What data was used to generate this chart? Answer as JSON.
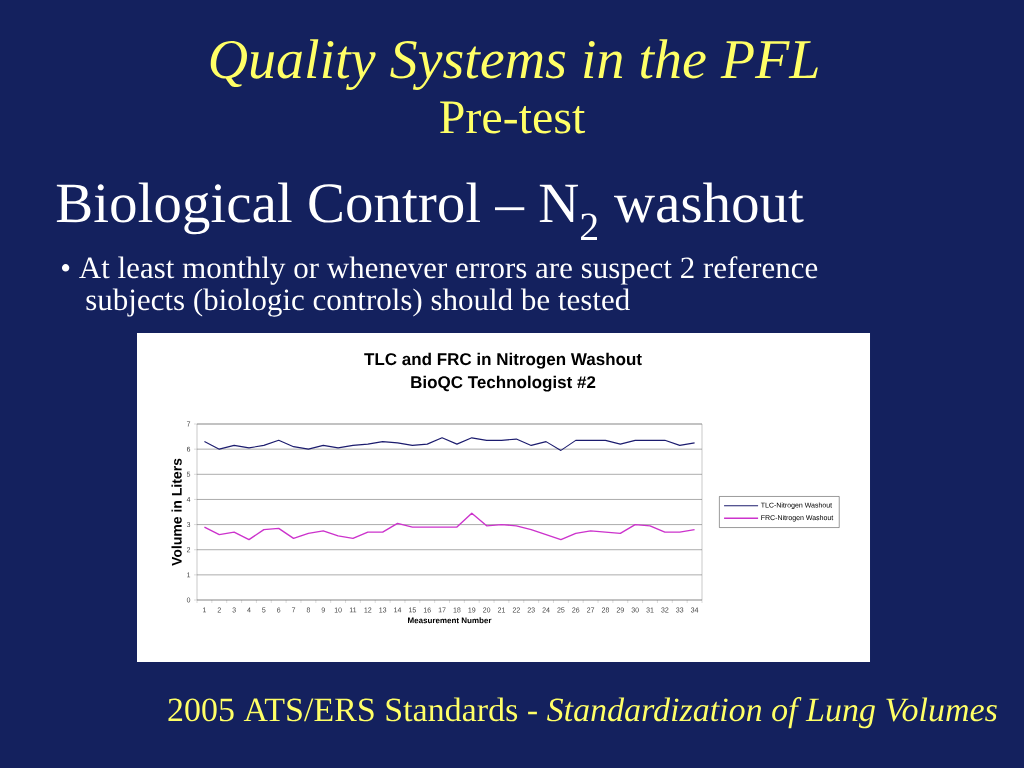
{
  "chart_data": {
    "type": "line",
    "title": "TLC and FRC in Nitrogen Washout",
    "subtitle": "BioQC Technologist #2",
    "xlabel": "Measurement Number",
    "ylabel": "Volume in Liters",
    "categories": [
      "1",
      "2",
      "3",
      "4",
      "5",
      "6",
      "7",
      "8",
      "9",
      "10",
      "11",
      "12",
      "13",
      "14",
      "15",
      "16",
      "17",
      "18",
      "19",
      "20",
      "21",
      "22",
      "23",
      "24",
      "25",
      "26",
      "27",
      "28",
      "29",
      "30",
      "31",
      "32",
      "33",
      "34"
    ],
    "series": [
      {
        "name": "TLC-Nitrogen Washout",
        "color": "#1c1c6e",
        "values": [
          6.3,
          6.0,
          6.15,
          6.05,
          6.15,
          6.35,
          6.1,
          6.0,
          6.15,
          6.05,
          6.15,
          6.2,
          6.3,
          6.25,
          6.15,
          6.2,
          6.45,
          6.2,
          6.45,
          6.35,
          6.35,
          6.4,
          6.15,
          6.3,
          5.95,
          6.35,
          6.35,
          6.35,
          6.2,
          6.35,
          6.35,
          6.35,
          6.15,
          6.25
        ]
      },
      {
        "name": "FRC-Nitrogen Washout",
        "color": "#cc33cc",
        "values": [
          2.9,
          2.6,
          2.7,
          2.4,
          2.8,
          2.85,
          2.45,
          2.65,
          2.75,
          2.55,
          2.45,
          2.7,
          2.7,
          3.05,
          2.9,
          2.9,
          2.9,
          2.9,
          3.45,
          2.95,
          3.0,
          2.95,
          2.8,
          2.6,
          2.4,
          2.65,
          2.75,
          2.7,
          2.65,
          3.0,
          2.95,
          2.7,
          2.7,
          2.8
        ]
      }
    ],
    "ylim": [
      0,
      7
    ],
    "yticks": [
      0,
      1,
      2,
      3,
      4,
      5,
      6,
      7
    ],
    "grid": "y",
    "legend": "right",
    "line_style": "solid",
    "annotations": [
      "Quality Systems in the PFL",
      "Pre-test",
      "Biological Control – N$_{2}$ washout",
      "• At least monthly or whenever errors are suspect 2 reference subjects (biologic controls) should be tested",
      "2005 ATS/ERS Standards - *Standardization of Lung Volumes*"
    ]
  }
}
